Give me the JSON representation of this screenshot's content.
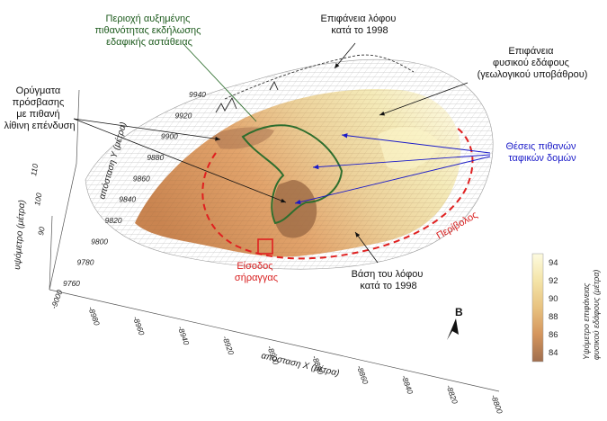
{
  "labels": {
    "instability_zone": [
      "Περιοχή αυξημένης",
      "πιθανότητας εκδήλωσης",
      "εδαφικής αστάθειας"
    ],
    "hill_surface_1998": [
      "Επιφάνεια λόφου",
      "κατά το 1998"
    ],
    "natural_ground": [
      "Επιφάνεια",
      "φυσικού εδάφους",
      "(γεωλογικού υποβάθρου)"
    ],
    "trenches": [
      "Ορύγματα",
      "πρόσβασης",
      "με πιθανή",
      "λίθινη επένδυση"
    ],
    "burial_structures": [
      "Θέσεις πιθανών",
      "ταφικών δομών"
    ],
    "peribolos": "Περίβολος",
    "tunnel_entrance": [
      "Είσοδος",
      "σήραγγας"
    ],
    "hill_base_1998": [
      "Βάση του λόφου",
      "κατά το 1998"
    ],
    "north": "B"
  },
  "colorbar": {
    "title_lines": [
      "Υψόμετρο επιφάνειας",
      "φυσικού εδάφους (μέτρα)"
    ],
    "ticks": [
      "94",
      "92",
      "90",
      "88",
      "86",
      "84"
    ],
    "min": 83,
    "max": 95,
    "colors": [
      "#a06e4e",
      "#d4955d",
      "#e8c280",
      "#f4e4a8",
      "#fdfbe0"
    ]
  },
  "axes": {
    "x_title": "απόσταση X (μέτρα)",
    "x_ticks": [
      "-8980",
      "-8960",
      "-8940",
      "-8920",
      "-8900",
      "-8880",
      "-8860",
      "-8840",
      "-8820",
      "-8800"
    ],
    "y_title": "απόσταση Y (μέτρα)",
    "y_ticks": [
      "9760",
      "9780",
      "9800",
      "9820",
      "9840",
      "9860",
      "9880",
      "9900",
      "9920",
      "9940"
    ],
    "z_title": "υψόμετρο (μέτρα)",
    "z_ticks": [
      "110",
      "100",
      "90"
    ],
    "origin_label": "-9000"
  },
  "colors": {
    "green_outline": "#2e6e2e",
    "blue_arrow": "#1a1ac8",
    "red_dash": "#e02020"
  }
}
